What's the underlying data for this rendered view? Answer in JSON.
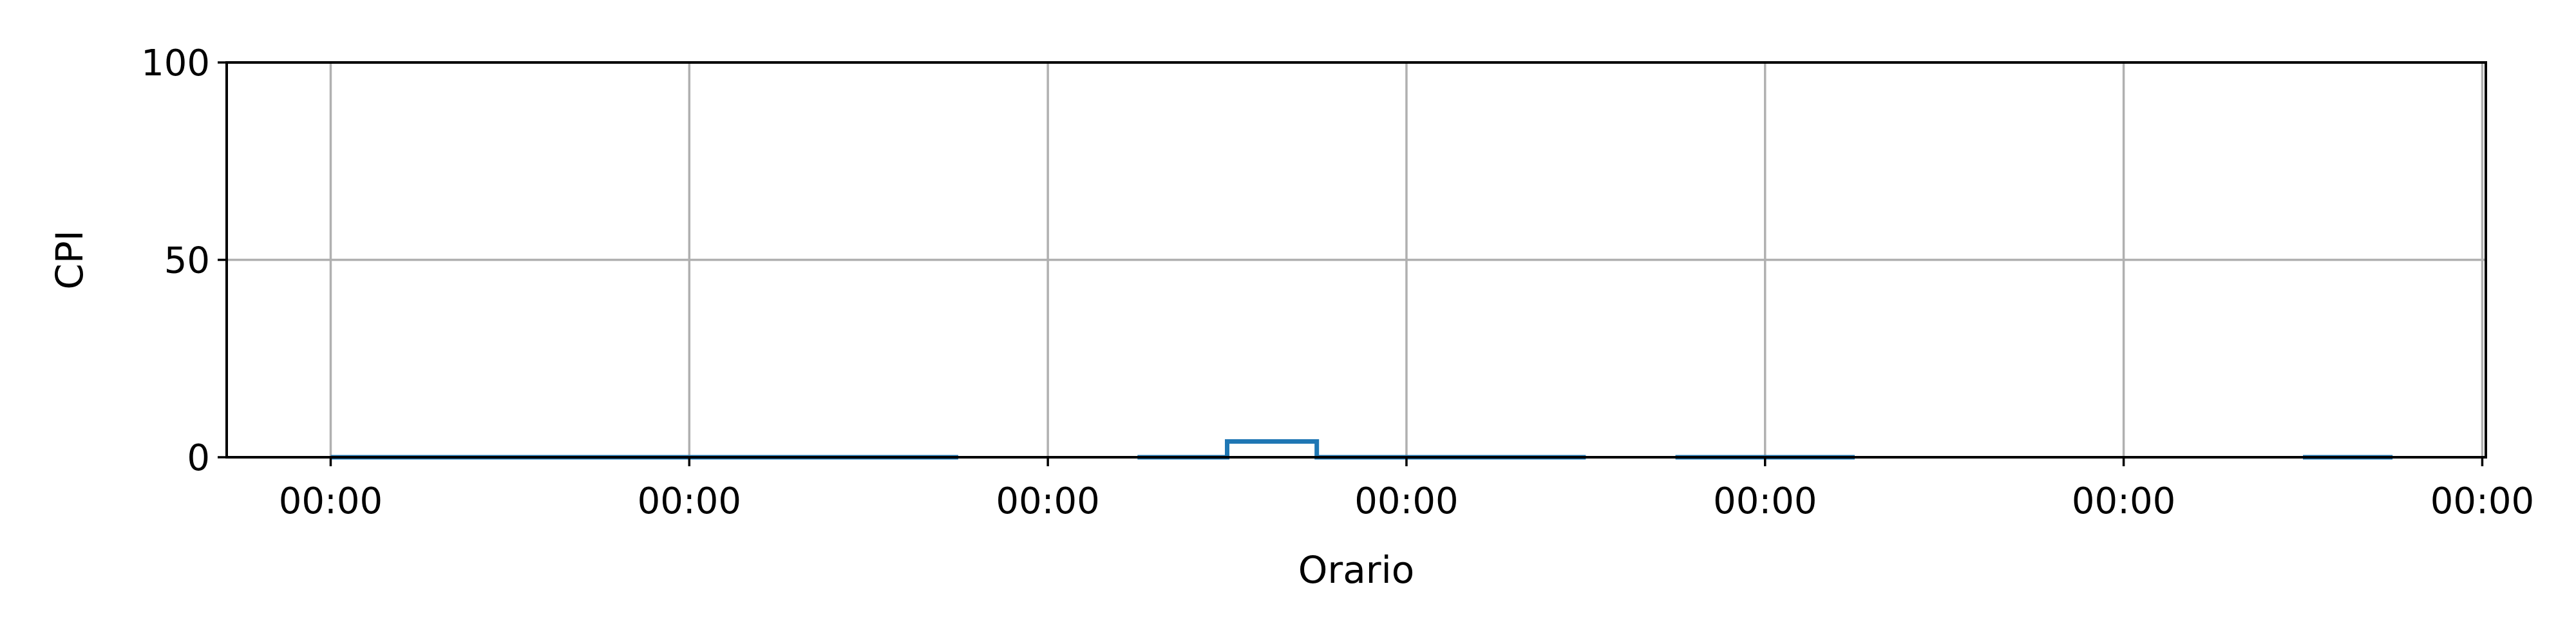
{
  "chart_data": {
    "type": "line",
    "title": "",
    "xlabel": "Orario",
    "ylabel": "CPI",
    "ylim": [
      0,
      100
    ],
    "xlim": [
      -0.29,
      6.01
    ],
    "y_ticks": [
      0,
      50,
      100
    ],
    "x_ticks": [
      0,
      1,
      2,
      3,
      4,
      5,
      6
    ],
    "x_tick_labels": [
      "00:00",
      "00:00",
      "00:00",
      "00:00",
      "00:00",
      "00:00",
      "00:00"
    ],
    "grid": true,
    "colors": {
      "series": "#1f77b4",
      "grid": "#b0b0b0",
      "axis": "#000000"
    },
    "series": [
      {
        "segments": [
          {
            "x": [
              0,
              0.5,
              1.0,
              1.5,
              1.75
            ],
            "y": [
              0,
              0,
              0,
              0,
              0
            ]
          },
          {
            "x": [
              2.25,
              2.5,
              2.5,
              2.75,
              2.75,
              3.0,
              3.5
            ],
            "y": [
              0,
              0,
              4,
              4,
              0,
              0,
              0
            ]
          },
          {
            "x": [
              3.75,
              4.0,
              4.25
            ],
            "y": [
              0,
              0,
              0
            ]
          },
          {
            "x": [
              5.5,
              5.75
            ],
            "y": [
              0,
              0
            ]
          }
        ]
      }
    ]
  }
}
